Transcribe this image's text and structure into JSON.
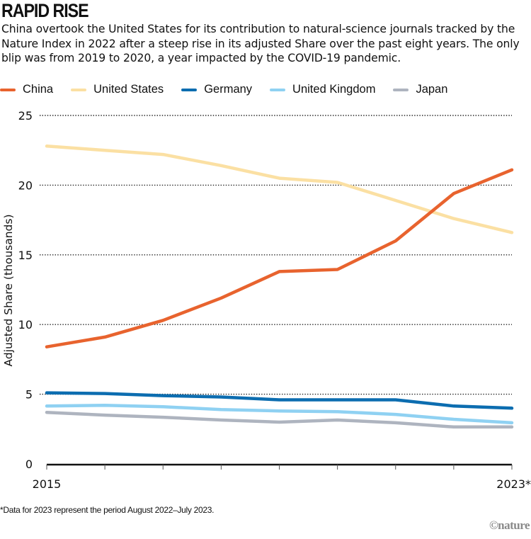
{
  "header": {
    "title": "RAPID RISE",
    "subtitle": "China overtook the United States for its contribution to natural-science journals tracked by the Nature Index in 2022 after a steep rise in its adjusted Share over the past eight years. The only blip was from 2019 to 2020, a year impacted by the COVID-19 pandemic."
  },
  "footnote": "*Data for 2023 represent the period August 2022–July 2023.",
  "credit": "©nature",
  "chart_data": {
    "type": "line",
    "title": "RAPID RISE",
    "xlabel": "",
    "ylabel": "Adjusted Share (thousands)",
    "x": [
      2015,
      2016,
      2017,
      2018,
      2019,
      2020,
      2021,
      2022,
      2023
    ],
    "x_tick_labels": [
      "2015",
      "",
      "",
      "",
      "",
      "",
      "",
      "",
      "2023*"
    ],
    "y_ticks": [
      0,
      5,
      10,
      15,
      20,
      25
    ],
    "y_tick_labels": [
      "0",
      "5",
      "10",
      "15",
      "20",
      "25"
    ],
    "ylim": [
      0,
      25
    ],
    "grid": "horizontal-dotted",
    "legend_position": "top",
    "series": [
      {
        "name": "China",
        "color": "#E8632E",
        "values": [
          8.4,
          9.1,
          10.3,
          11.9,
          13.8,
          13.95,
          16.0,
          19.4,
          21.1
        ]
      },
      {
        "name": "United States",
        "color": "#FBE0A3",
        "values": [
          22.8,
          22.5,
          22.2,
          21.4,
          20.5,
          20.2,
          18.9,
          17.6,
          16.6
        ]
      },
      {
        "name": "Germany",
        "color": "#0C6DB0",
        "values": [
          5.1,
          5.05,
          4.9,
          4.8,
          4.6,
          4.6,
          4.6,
          4.15,
          4.0
        ]
      },
      {
        "name": "United Kingdom",
        "color": "#8FD1F2",
        "values": [
          4.15,
          4.2,
          4.1,
          3.9,
          3.8,
          3.75,
          3.55,
          3.2,
          2.95
        ]
      },
      {
        "name": "Japan",
        "color": "#AEB4BF",
        "values": [
          3.7,
          3.5,
          3.35,
          3.15,
          3.0,
          3.15,
          2.95,
          2.65,
          2.65
        ]
      }
    ]
  }
}
